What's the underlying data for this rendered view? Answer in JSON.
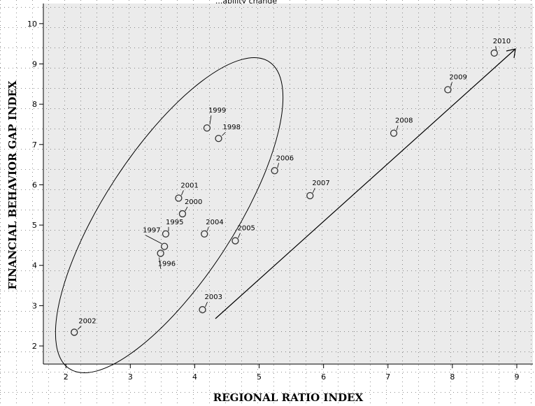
{
  "chart_data": {
    "type": "scatter",
    "title": "...ability change",
    "xlabel": "REGIONAL RATIO INDEX",
    "ylabel": "FINANCIAL BEHAVIOR GAP INDEX",
    "xlim": [
      1.65,
      9.25
    ],
    "ylim": [
      1.55,
      10.5
    ],
    "x_ticks": [
      2,
      3,
      4,
      5,
      6,
      7,
      8,
      9
    ],
    "y_ticks": [
      2,
      3,
      4,
      5,
      6,
      7,
      8,
      9,
      10
    ],
    "grid": true,
    "points": [
      {
        "label": "1995",
        "x": 3.55,
        "y": 4.78
      },
      {
        "label": "1996",
        "x": 3.47,
        "y": 4.3
      },
      {
        "label": "1997",
        "x": 3.53,
        "y": 4.47
      },
      {
        "label": "1998",
        "x": 4.37,
        "y": 7.15
      },
      {
        "label": "1999",
        "x": 4.19,
        "y": 7.41
      },
      {
        "label": "2000",
        "x": 3.81,
        "y": 5.28
      },
      {
        "label": "2001",
        "x": 3.75,
        "y": 5.67
      },
      {
        "label": "2002",
        "x": 2.13,
        "y": 2.34
      },
      {
        "label": "2003",
        "x": 4.12,
        "y": 2.9
      },
      {
        "label": "2004",
        "x": 4.15,
        "y": 4.78
      },
      {
        "label": "2005",
        "x": 4.63,
        "y": 4.61
      },
      {
        "label": "2006",
        "x": 5.24,
        "y": 6.35
      },
      {
        "label": "2007",
        "x": 5.79,
        "y": 5.73
      },
      {
        "label": "2008",
        "x": 7.09,
        "y": 7.28
      },
      {
        "label": "2009",
        "x": 7.93,
        "y": 8.36
      },
      {
        "label": "2010",
        "x": 8.65,
        "y": 9.27
      }
    ]
  }
}
